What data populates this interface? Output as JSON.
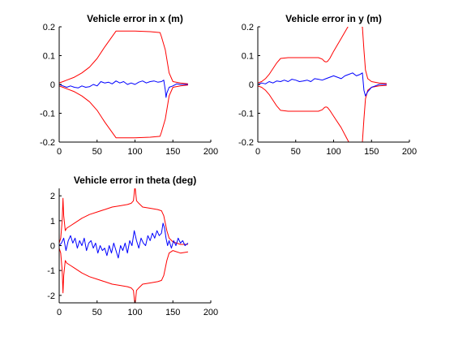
{
  "chart_data": [
    {
      "type": "line",
      "title": "Vehicle error in x (m)",
      "xlim": [
        0,
        200
      ],
      "ylim": [
        -0.2,
        0.2
      ],
      "xticks": [
        0,
        50,
        100,
        150,
        200
      ],
      "yticks": [
        -0.2,
        -0.1,
        0,
        0.1,
        0.2
      ],
      "xtick_labels": [
        "0",
        "50",
        "100",
        "150",
        "200"
      ],
      "ytick_labels": [
        "-0.2",
        "-0.1",
        "0",
        "0.1",
        "0.2"
      ],
      "series": [
        {
          "color": "#ff0000",
          "x": [
            0,
            5,
            10,
            20,
            30,
            40,
            50,
            60,
            75,
            100,
            120,
            133,
            135,
            140,
            145,
            150,
            160,
            170
          ],
          "y": [
            0.005,
            0.01,
            0.015,
            0.025,
            0.04,
            0.06,
            0.09,
            0.13,
            0.185,
            0.185,
            0.183,
            0.18,
            0.165,
            0.12,
            0.04,
            0.01,
            0.005,
            0.002
          ]
        },
        {
          "color": "#ff0000",
          "x": [
            0,
            5,
            10,
            20,
            30,
            40,
            50,
            60,
            75,
            100,
            120,
            133,
            135,
            140,
            145,
            150,
            160,
            170
          ],
          "y": [
            -0.005,
            -0.01,
            -0.015,
            -0.025,
            -0.04,
            -0.06,
            -0.09,
            -0.13,
            -0.185,
            -0.185,
            -0.183,
            -0.18,
            -0.165,
            -0.12,
            -0.04,
            -0.01,
            -0.005,
            -0.002
          ]
        },
        {
          "color": "#0000ff",
          "x": [
            0,
            5,
            10,
            15,
            20,
            25,
            30,
            35,
            40,
            45,
            50,
            55,
            60,
            65,
            70,
            75,
            80,
            85,
            90,
            95,
            100,
            105,
            110,
            115,
            120,
            125,
            130,
            135,
            138,
            140,
            141,
            142,
            145,
            150,
            155,
            160,
            165,
            170
          ],
          "y": [
            0,
            -0.005,
            -0.01,
            -0.005,
            -0.01,
            -0.012,
            -0.005,
            -0.01,
            -0.008,
            0.0,
            -0.005,
            0.01,
            0.005,
            0.008,
            0.002,
            0.012,
            0.005,
            0.01,
            0.0,
            0.005,
            0.0,
            0.008,
            0.012,
            0.005,
            0.01,
            0.012,
            0.008,
            0.01,
            0.015,
            -0.02,
            -0.045,
            -0.03,
            -0.01,
            -0.005,
            0.002,
            0.0,
            0.0,
            0.0
          ]
        }
      ]
    },
    {
      "type": "line",
      "title": "Vehicle error in y (m)",
      "xlim": [
        0,
        200
      ],
      "ylim": [
        -0.2,
        0.2
      ],
      "xticks": [
        0,
        50,
        100,
        150,
        200
      ],
      "yticks": [
        -0.2,
        -0.1,
        0,
        0.1,
        0.2
      ],
      "xtick_labels": [
        "0",
        "50",
        "100",
        "150",
        "200"
      ],
      "ytick_labels": [
        "-0.2",
        "-0.1",
        "0",
        "0.1",
        "0.2"
      ],
      "series": [
        {
          "color": "#ff0000",
          "x": [
            0,
            5,
            10,
            15,
            20,
            25,
            30,
            40,
            50,
            60,
            70,
            80,
            85,
            88,
            90,
            92,
            95,
            100,
            110,
            120,
            125,
            135,
            138,
            140,
            142,
            145,
            150,
            160,
            170
          ],
          "y": [
            0.005,
            0.01,
            0.02,
            0.035,
            0.055,
            0.075,
            0.09,
            0.093,
            0.093,
            0.093,
            0.093,
            0.093,
            0.088,
            0.08,
            0.078,
            0.08,
            0.09,
            0.115,
            0.16,
            0.205,
            0.205,
            0.203,
            0.2,
            0.12,
            0.05,
            0.02,
            0.01,
            0.005,
            0.003
          ]
        },
        {
          "color": "#ff0000",
          "x": [
            0,
            5,
            10,
            15,
            20,
            25,
            30,
            40,
            50,
            60,
            70,
            80,
            85,
            88,
            90,
            92,
            95,
            100,
            110,
            115,
            120,
            125,
            128,
            132,
            135,
            138,
            140,
            142,
            145,
            150,
            160,
            170
          ],
          "y": [
            -0.005,
            -0.01,
            -0.02,
            -0.035,
            -0.055,
            -0.075,
            -0.09,
            -0.093,
            -0.093,
            -0.093,
            -0.093,
            -0.093,
            -0.088,
            -0.08,
            -0.078,
            -0.08,
            -0.09,
            -0.11,
            -0.15,
            -0.175,
            -0.2,
            -0.2,
            -0.2,
            -0.2,
            -0.2,
            -0.2,
            -0.12,
            -0.05,
            -0.02,
            -0.01,
            -0.005,
            -0.003
          ]
        },
        {
          "color": "#0000ff",
          "x": [
            0,
            5,
            10,
            15,
            20,
            25,
            30,
            35,
            40,
            45,
            50,
            55,
            60,
            65,
            70,
            75,
            80,
            85,
            90,
            95,
            100,
            105,
            110,
            115,
            120,
            125,
            130,
            135,
            138,
            140,
            142,
            145,
            150,
            155,
            160,
            165,
            170
          ],
          "y": [
            0.0,
            0.005,
            0.002,
            0.01,
            0.005,
            0.012,
            0.01,
            0.015,
            0.01,
            0.018,
            0.015,
            0.01,
            0.012,
            0.015,
            0.01,
            0.02,
            0.018,
            0.015,
            0.02,
            0.025,
            0.03,
            0.025,
            0.02,
            0.03,
            0.035,
            0.04,
            0.03,
            0.035,
            0.04,
            -0.02,
            -0.04,
            -0.025,
            -0.01,
            -0.005,
            0.0,
            0.0,
            0.0
          ]
        }
      ]
    },
    {
      "type": "line",
      "title": "Vehicle error in theta (deg)",
      "xlim": [
        0,
        200
      ],
      "ylim": [
        -2.3,
        2.3
      ],
      "xticks": [
        0,
        50,
        100,
        150,
        200
      ],
      "yticks": [
        -2,
        -1,
        0,
        1,
        2
      ],
      "xtick_labels": [
        "0",
        "50",
        "100",
        "150",
        "200"
      ],
      "ytick_labels": [
        "-2",
        "-1",
        "0",
        "1",
        "2"
      ],
      "series": [
        {
          "color": "#ff0000",
          "x": [
            0,
            2,
            4,
            5,
            6,
            8,
            10,
            15,
            20,
            30,
            40,
            50,
            60,
            70,
            80,
            90,
            95,
            98,
            100,
            102,
            105,
            110,
            120,
            130,
            135,
            138,
            140,
            142,
            145,
            150,
            160,
            170
          ],
          "y": [
            0.1,
            0.3,
            1.0,
            1.9,
            1.2,
            0.6,
            0.7,
            0.8,
            0.9,
            1.1,
            1.25,
            1.35,
            1.45,
            1.55,
            1.6,
            1.65,
            1.7,
            1.8,
            2.4,
            1.8,
            1.7,
            1.55,
            1.5,
            1.45,
            1.4,
            1.2,
            0.9,
            0.6,
            0.3,
            0.15,
            0.05,
            0.05
          ]
        },
        {
          "color": "#ff0000",
          "x": [
            0,
            2,
            4,
            5,
            6,
            8,
            10,
            15,
            20,
            30,
            40,
            50,
            60,
            70,
            80,
            90,
            95,
            98,
            100,
            102,
            105,
            110,
            120,
            130,
            135,
            138,
            140,
            142,
            145,
            150,
            160,
            170
          ],
          "y": [
            -0.1,
            -0.3,
            -1.0,
            -1.9,
            -1.2,
            -0.6,
            -0.7,
            -0.8,
            -0.9,
            -1.1,
            -1.25,
            -1.35,
            -1.45,
            -1.55,
            -1.6,
            -1.65,
            -1.7,
            -1.8,
            -2.4,
            -1.8,
            -1.7,
            -1.55,
            -1.5,
            -1.45,
            -1.4,
            -1.2,
            -0.9,
            -0.6,
            -0.3,
            -0.2,
            -0.3,
            -0.25
          ]
        },
        {
          "color": "#0000ff",
          "x": [
            0,
            3,
            6,
            9,
            12,
            15,
            18,
            21,
            24,
            27,
            30,
            33,
            36,
            39,
            42,
            45,
            48,
            51,
            54,
            57,
            60,
            63,
            66,
            69,
            72,
            75,
            78,
            81,
            84,
            87,
            90,
            93,
            96,
            99,
            102,
            105,
            108,
            111,
            114,
            117,
            120,
            123,
            126,
            129,
            132,
            135,
            137,
            139,
            141,
            143,
            145,
            148,
            151,
            154,
            157,
            160,
            163,
            166,
            170
          ],
          "y": [
            0.0,
            0.1,
            0.3,
            -0.2,
            0.2,
            0.4,
            0.1,
            0.3,
            -0.1,
            0.2,
            0.0,
            0.3,
            -0.2,
            0.1,
            0.2,
            -0.1,
            0.1,
            -0.3,
            0.0,
            -0.2,
            -0.1,
            -0.4,
            0.0,
            -0.3,
            0.1,
            -0.2,
            -0.5,
            0.0,
            -0.2,
            0.1,
            -0.3,
            0.2,
            0.0,
            0.6,
            0.2,
            -0.1,
            0.3,
            0.1,
            0.0,
            0.4,
            0.2,
            0.5,
            0.3,
            0.6,
            0.4,
            0.5,
            0.9,
            0.7,
            0.3,
            0.0,
            0.2,
            -0.1,
            0.2,
            0.0,
            0.3,
            0.1,
            0.2,
            0.0,
            0.1
          ]
        }
      ]
    }
  ]
}
